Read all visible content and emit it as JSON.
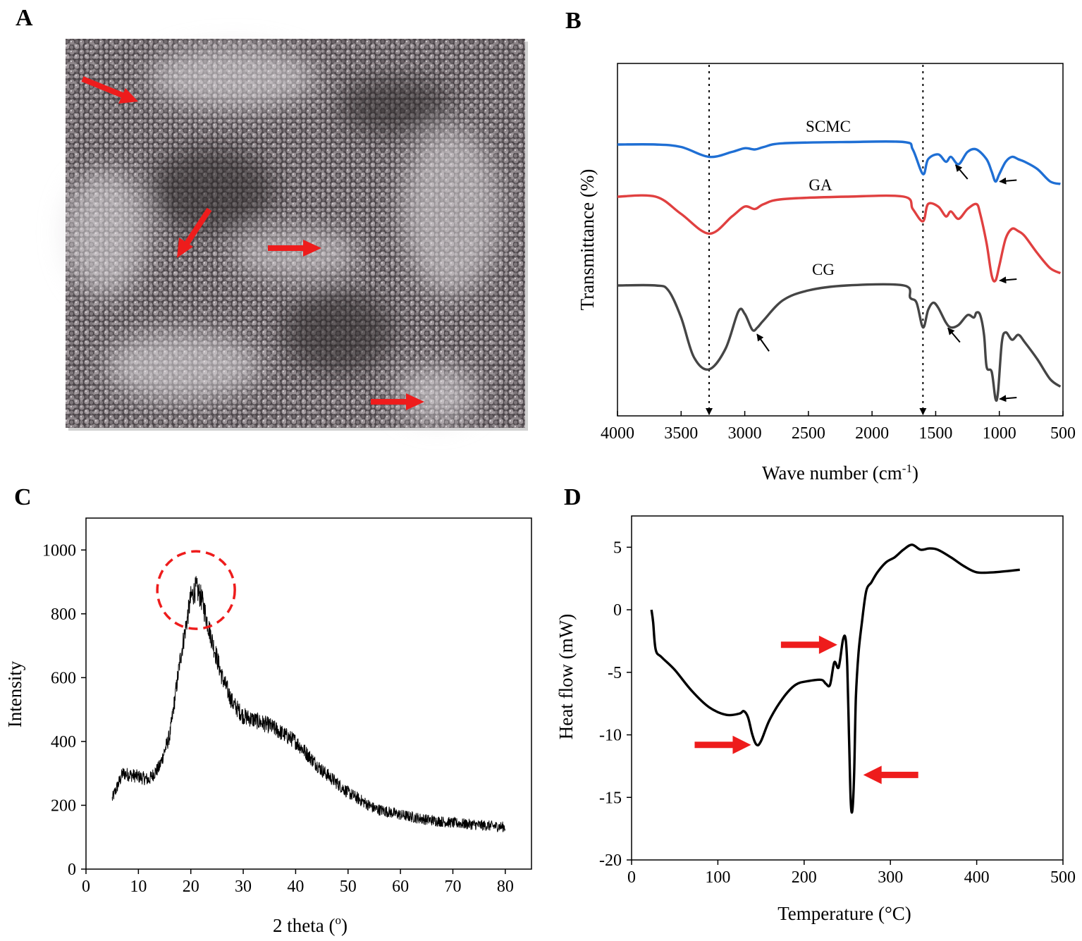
{
  "colors": {
    "scmc": "#1f6fd4",
    "ga": "#e04040",
    "cg": "#454545",
    "arrow_red": "#ee1c1c",
    "ink": "#000000"
  },
  "panels": {
    "A": {
      "label": "A"
    },
    "B": {
      "label": "B"
    },
    "C": {
      "label": "C"
    },
    "D": {
      "label": "D"
    }
  },
  "chart_data": [
    {
      "panel": "B",
      "type": "line",
      "title": "",
      "xlabel": "Wave number (cm",
      "xlabel_sup": "-1",
      "xlabel_close": ")",
      "ylabel": "Transmittance (%)",
      "xlim": [
        4000,
        500
      ],
      "xticks": [
        "4000",
        "3500",
        "3000",
        "2500",
        "2000",
        "1500",
        "1000",
        "500"
      ],
      "y_ticks_shown": false,
      "reference_lines": [
        3280,
        1600
      ],
      "series": [
        {
          "name": "SCMC",
          "x": [
            4000,
            3700,
            3500,
            3280,
            3100,
            3000,
            2920,
            2850,
            2700,
            2200,
            1750,
            1680,
            1600,
            1560,
            1480,
            1420,
            1380,
            1320,
            1250,
            1180,
            1100,
            1060,
            1030,
            1000,
            950,
            900,
            850,
            800,
            700,
            600,
            520
          ],
          "values": [
            -4,
            -4,
            -6,
            -14,
            -10,
            -7,
            -8,
            -6,
            -3,
            -2,
            -2,
            -8,
            -28,
            -16,
            -12,
            -18,
            -14,
            -20,
            -10,
            -8,
            -16,
            -26,
            -34,
            -28,
            -18,
            -14,
            -16,
            -18,
            -24,
            -34,
            -36
          ]
        },
        {
          "name": "GA",
          "x": [
            4000,
            3700,
            3500,
            3280,
            3100,
            3000,
            2920,
            2850,
            2700,
            2200,
            1750,
            1680,
            1600,
            1560,
            1480,
            1420,
            1380,
            1320,
            1250,
            1180,
            1150,
            1100,
            1060,
            1030,
            1000,
            950,
            900,
            850,
            800,
            700,
            600,
            520
          ],
          "values": [
            -4,
            -4,
            -18,
            -34,
            -20,
            -12,
            -14,
            -10,
            -6,
            -4,
            -4,
            -14,
            -24,
            -10,
            -12,
            -20,
            -16,
            -22,
            -14,
            -10,
            -18,
            -42,
            -68,
            -72,
            -60,
            -38,
            -30,
            -32,
            -36,
            -50,
            -62,
            -66
          ]
        },
        {
          "name": "CG",
          "x": [
            4000,
            3700,
            3600,
            3500,
            3400,
            3280,
            3150,
            3050,
            3000,
            2940,
            2900,
            2850,
            2700,
            2500,
            2200,
            1750,
            1700,
            1650,
            1600,
            1560,
            1520,
            1480,
            1420,
            1380,
            1320,
            1250,
            1200,
            1180,
            1150,
            1120,
            1100,
            1060,
            1030,
            1010,
            980,
            950,
            900,
            850,
            800,
            700,
            600,
            520
          ],
          "values": [
            -4,
            -4,
            -8,
            -30,
            -62,
            -72,
            -55,
            -25,
            -27,
            -40,
            -38,
            -32,
            -16,
            -8,
            -4,
            -4,
            -14,
            -18,
            -38,
            -24,
            -18,
            -22,
            -34,
            -38,
            -36,
            -28,
            -30,
            -26,
            -28,
            -44,
            -70,
            -74,
            -96,
            -90,
            -50,
            -42,
            -48,
            -44,
            -50,
            -64,
            -80,
            -86
          ]
        }
      ],
      "annotations": [
        {
          "type": "arrow",
          "near_series": "SCMC",
          "x": 1360
        },
        {
          "type": "arrow",
          "near_series": "SCMC",
          "x": 1030
        },
        {
          "type": "arrow",
          "near_series": "GA",
          "x": 1030
        },
        {
          "type": "arrow",
          "near_series": "CG",
          "x": 2920
        },
        {
          "type": "arrow",
          "near_series": "CG",
          "x": 1420
        },
        {
          "type": "arrow",
          "near_series": "CG",
          "x": 1030
        }
      ]
    },
    {
      "panel": "C",
      "type": "line",
      "title": "",
      "xlabel": "2 theta (",
      "xlabel_sup": "o",
      "xlabel_close": ")",
      "ylabel": "Intensity",
      "xlim": [
        0,
        85
      ],
      "ylim": [
        0,
        1100
      ],
      "xticks": [
        "0",
        "10",
        "20",
        "30",
        "40",
        "50",
        "60",
        "70",
        "80"
      ],
      "yticks": [
        "0",
        "200",
        "400",
        "600",
        "800",
        "1000"
      ],
      "x_range": [
        5,
        80
      ],
      "profile": {
        "x": [
          5,
          7,
          10,
          12,
          14,
          16,
          18,
          20,
          21,
          22,
          24,
          26,
          28,
          30,
          35,
          40,
          45,
          50,
          55,
          60,
          65,
          70,
          75,
          80
        ],
        "values": [
          220,
          300,
          290,
          280,
          320,
          420,
          660,
          850,
          880,
          850,
          720,
          600,
          520,
          480,
          450,
          400,
          310,
          240,
          190,
          170,
          155,
          145,
          138,
          132
        ]
      },
      "noise_amplitude": 28,
      "peak_marker": {
        "type": "dashed-circle",
        "x": 21,
        "y": 870
      }
    },
    {
      "panel": "D",
      "type": "line",
      "title": "",
      "xlabel": "Temperature (°C)",
      "ylabel": "Heat flow (mW)",
      "xlim": [
        0,
        500
      ],
      "ylim": [
        -20,
        7.5
      ],
      "xticks": [
        "0",
        "100",
        "200",
        "300",
        "400",
        "500"
      ],
      "yticks": [
        "-20",
        "-15",
        "-10",
        "-5",
        "0",
        "5"
      ],
      "series": [
        {
          "name": "heat flow",
          "x": [
            23,
            25,
            28,
            35,
            50,
            70,
            90,
            110,
            125,
            130,
            135,
            140,
            145,
            150,
            160,
            175,
            190,
            205,
            220,
            225,
            230,
            235,
            240,
            245,
            248,
            250,
            252,
            254,
            256,
            258,
            260,
            263,
            267,
            272,
            278,
            285,
            295,
            305,
            315,
            325,
            335,
            345,
            355,
            370,
            385,
            400,
            420,
            450
          ],
          "values": [
            0,
            -1,
            -3.2,
            -3.8,
            -4.8,
            -6.5,
            -7.8,
            -8.4,
            -8.3,
            -8.1,
            -8.6,
            -10.0,
            -10.8,
            -10.5,
            -8.8,
            -7.1,
            -6.0,
            -5.7,
            -5.6,
            -5.9,
            -6.0,
            -4.2,
            -4.6,
            -2.4,
            -2.3,
            -4.5,
            -10.0,
            -15.3,
            -16.0,
            -13.0,
            -7.0,
            -3.5,
            -1.0,
            1.5,
            2.2,
            3.0,
            3.8,
            4.2,
            4.8,
            5.2,
            4.8,
            4.9,
            4.8,
            4.2,
            3.5,
            3.0,
            3.0,
            3.2
          ]
        }
      ],
      "annotations": [
        {
          "type": "red-arrow",
          "points_to_x": 145,
          "points_to_y": -10.8,
          "direction": "right"
        },
        {
          "type": "red-arrow",
          "points_to_x": 245,
          "points_to_y": -2.8,
          "direction": "right"
        },
        {
          "type": "red-arrow",
          "points_to_x": 262,
          "points_to_y": -13.2,
          "direction": "left"
        }
      ]
    }
  ],
  "micrograph": {
    "arrows": [
      {
        "direction": "down-right"
      },
      {
        "direction": "down-left"
      },
      {
        "direction": "right"
      },
      {
        "direction": "right"
      }
    ]
  }
}
